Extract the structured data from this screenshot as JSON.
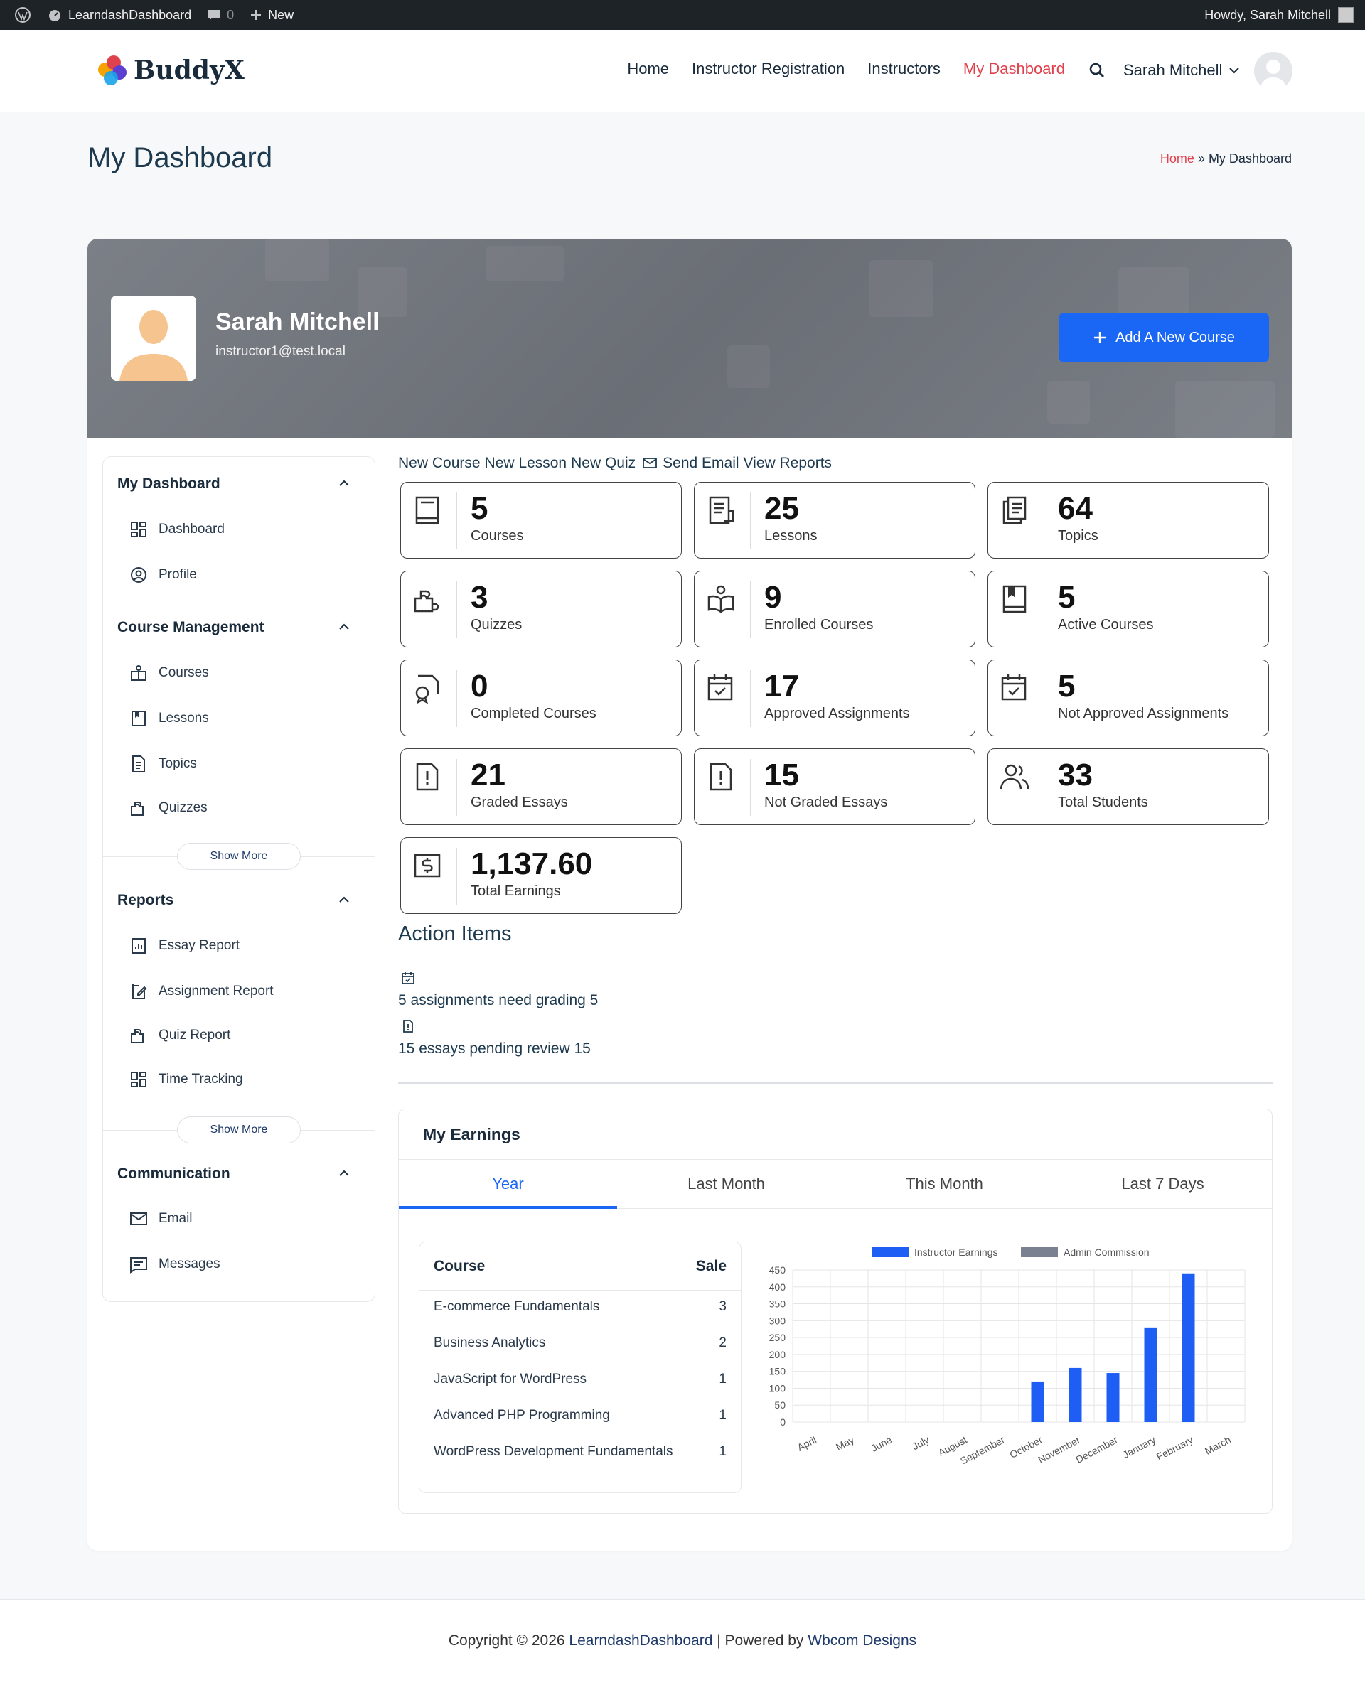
{
  "adminbar": {
    "site": "LearndashDashboard",
    "comments": "0",
    "new": "New",
    "howdy": "Howdy, Sarah Mitchell"
  },
  "header": {
    "logo": "BuddyX",
    "nav": [
      "Home",
      "Instructor Registration",
      "Instructors",
      "My Dashboard"
    ],
    "user": "Sarah Mitchell"
  },
  "page": {
    "title": "My Dashboard",
    "breadcrumb_home": "Home",
    "breadcrumb_sep": "»",
    "breadcrumb_current": "My Dashboard"
  },
  "profile": {
    "name": "Sarah Mitchell",
    "email": "instructor1@test.local",
    "add_course": "Add A New Course"
  },
  "sidebar": {
    "sections": [
      {
        "title": "My Dashboard",
        "items": [
          "Dashboard",
          "Profile"
        ]
      },
      {
        "title": "Course Management",
        "items": [
          "Courses",
          "Lessons",
          "Topics",
          "Quizzes"
        ],
        "show_more": "Show More"
      },
      {
        "title": "Reports",
        "items": [
          "Essay Report",
          "Assignment Report",
          "Quiz Report",
          "Time Tracking"
        ],
        "show_more": "Show More"
      },
      {
        "title": "Communication",
        "items": [
          "Email",
          "Messages"
        ]
      }
    ]
  },
  "quicklinks": {
    "new_course": "New Course",
    "new_lesson": "New Lesson",
    "new_quiz": "New Quiz",
    "send_email": "Send Email",
    "view_reports": "View Reports"
  },
  "stats": [
    {
      "num": "5",
      "label": "Courses",
      "icon": "book-icon"
    },
    {
      "num": "25",
      "label": "Lessons",
      "icon": "document-icon"
    },
    {
      "num": "64",
      "label": "Topics",
      "icon": "files-icon"
    },
    {
      "num": "3",
      "label": "Quizzes",
      "icon": "puzzle-icon"
    },
    {
      "num": "9",
      "label": "Enrolled Courses",
      "icon": "open-book-user-icon"
    },
    {
      "num": "5",
      "label": "Active Courses",
      "icon": "bookmark-book-icon"
    },
    {
      "num": "0",
      "label": "Completed Courses",
      "icon": "certificate-icon"
    },
    {
      "num": "17",
      "label": "Approved Assignments",
      "icon": "calendar-check-icon"
    },
    {
      "num": "5",
      "label": "Not Approved Assignments",
      "icon": "calendar-check-icon"
    },
    {
      "num": "21",
      "label": "Graded Essays",
      "icon": "essay-alert-icon"
    },
    {
      "num": "15",
      "label": "Not Graded Essays",
      "icon": "essay-alert-icon"
    },
    {
      "num": "33",
      "label": "Total Students",
      "icon": "users-icon"
    },
    {
      "num": "1,137.60",
      "label": "Total Earnings",
      "icon": "dollar-icon"
    }
  ],
  "actions": {
    "title": "Action Items",
    "items": [
      "5 assignments need grading 5",
      "15 essays pending review 15"
    ]
  },
  "earnings": {
    "title": "My Earnings",
    "tabs": [
      "Year",
      "Last Month",
      "This Month",
      "Last 7 Days"
    ],
    "table": {
      "headers": [
        "Course",
        "Sale"
      ],
      "rows": [
        [
          "E-commerce Fundamentals",
          "3"
        ],
        [
          "Business Analytics",
          "2"
        ],
        [
          "JavaScript for WordPress",
          "1"
        ],
        [
          "Advanced PHP Programming",
          "1"
        ],
        [
          "WordPress Development Fundamentals",
          "1"
        ]
      ]
    }
  },
  "chart_data": {
    "type": "bar",
    "categories": [
      "April",
      "May",
      "June",
      "July",
      "August",
      "September",
      "October",
      "November",
      "December",
      "January",
      "February",
      "March"
    ],
    "series": [
      {
        "name": "Instructor Earnings",
        "color": "#1f5ef5",
        "values": [
          0,
          0,
          0,
          0,
          0,
          0,
          120,
          160,
          145,
          280,
          440,
          0
        ]
      },
      {
        "name": "Admin Commission",
        "color": "#7a8291",
        "values": [
          0,
          0,
          0,
          0,
          0,
          0,
          0,
          0,
          0,
          0,
          0,
          0
        ]
      }
    ],
    "ylim": [
      0,
      450
    ],
    "yticks": [
      0,
      50,
      100,
      150,
      200,
      250,
      300,
      350,
      400,
      450
    ],
    "legend": "top",
    "grid": true
  },
  "footer": {
    "prefix": "Copyright © 2026",
    "site": "LearndashDashboard",
    "mid": "| Powered by",
    "company": "Wbcom Designs"
  }
}
